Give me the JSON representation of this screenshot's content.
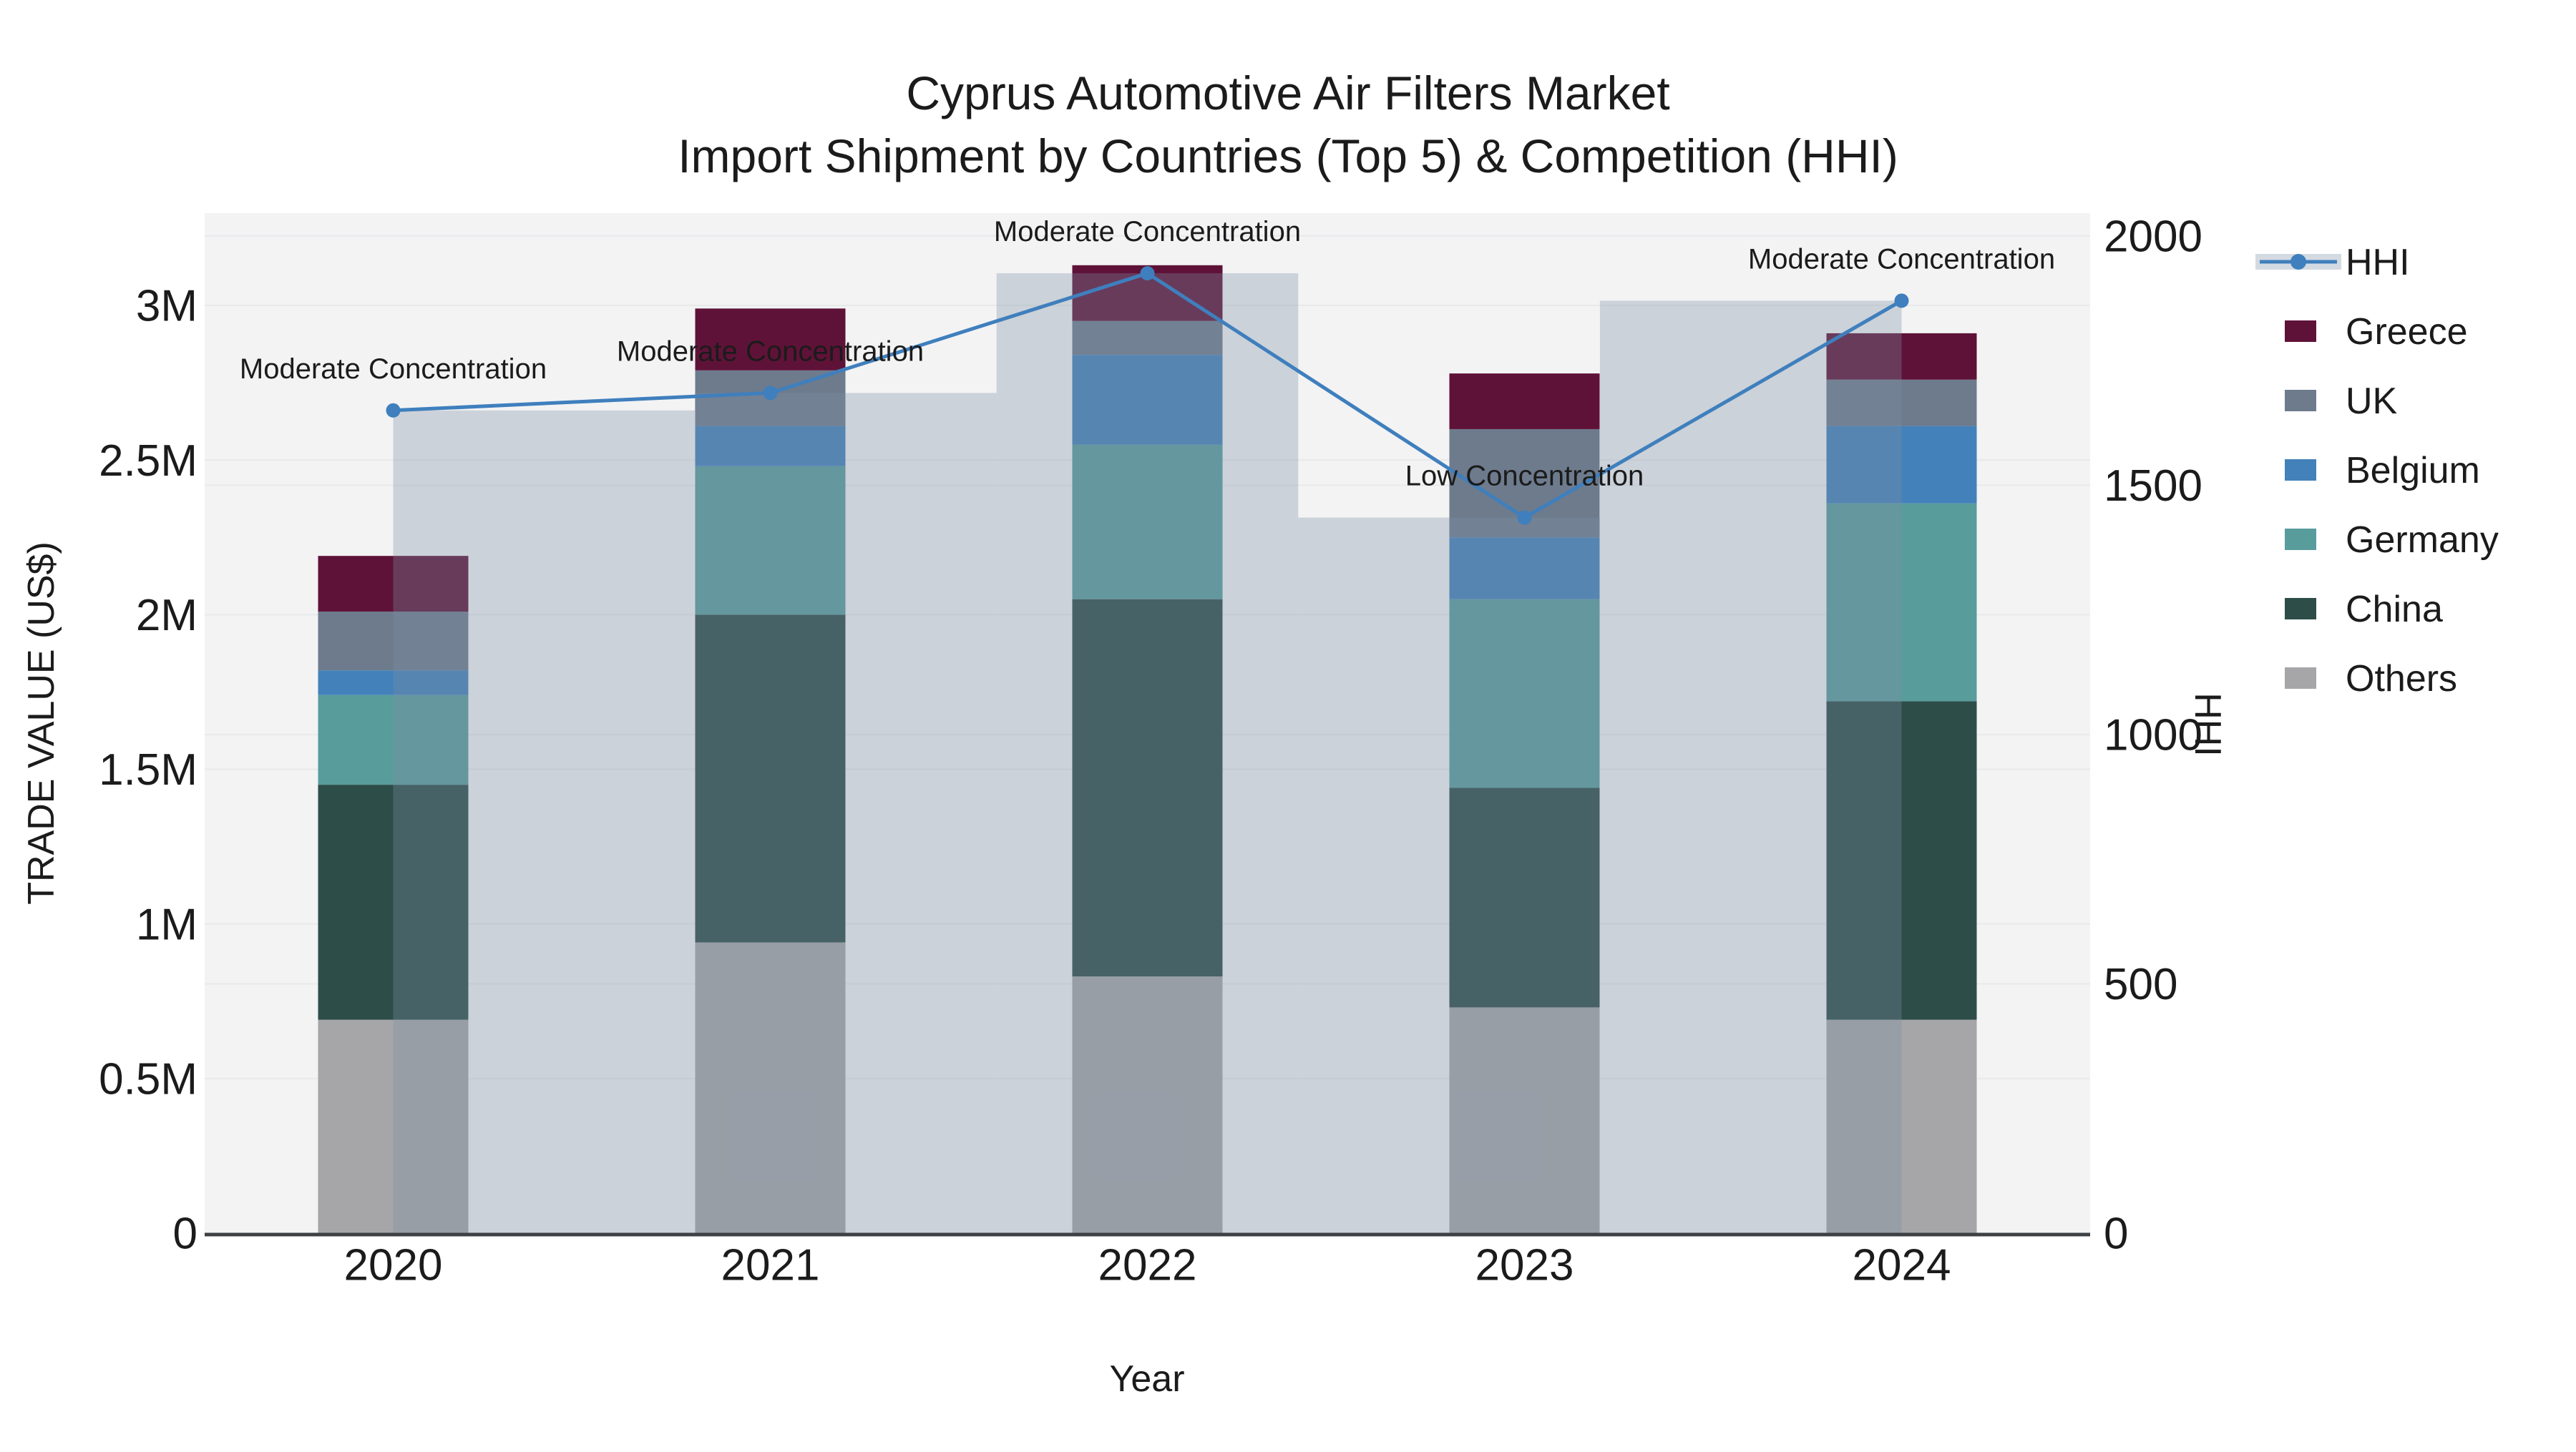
{
  "title": {
    "line1": "Cyprus Automotive Air Filters Market",
    "line2": "Import Shipment by Countries (Top 5) & Competition (HHI)"
  },
  "colors": {
    "plot_bg": "#f3f3f4",
    "grid": "#e8e9eb",
    "axis_line": "#3d4144",
    "text": "#1b1b1b",
    "hhi_line": "#3f7fbd",
    "hhi_overlay": "#7d8ea5",
    "hhi_overlay_alpha": 0.33,
    "greece": "#5f1238",
    "uk": "#6d7b8d",
    "belgium": "#4381ba",
    "germany": "#599c9c",
    "china": "#2d4d49",
    "others": "#a6a6a8"
  },
  "axes": {
    "x": {
      "title": "Year",
      "ticks": [
        "2020",
        "2021",
        "2022",
        "2023",
        "2024"
      ]
    },
    "y_left": {
      "title": "TRADE VALUE (US$)",
      "tick_labels": [
        "0",
        "0.5M",
        "1M",
        "1.5M",
        "2M",
        "2.5M",
        "3M"
      ],
      "tick_values": [
        0,
        0.5,
        1,
        1.5,
        2,
        2.5,
        3
      ]
    },
    "y_right": {
      "title": "HHI",
      "tick_labels": [
        "0",
        "500",
        "1000",
        "1500",
        "2000"
      ],
      "tick_values": [
        0,
        500,
        1000,
        1500,
        2000
      ]
    }
  },
  "legend": {
    "items": [
      {
        "label": "HHI",
        "type": "line",
        "color": "#3f7fbd"
      },
      {
        "label": "Greece",
        "type": "swatch",
        "color": "#5f1238"
      },
      {
        "label": "UK",
        "type": "swatch",
        "color": "#6d7b8d"
      },
      {
        "label": "Belgium",
        "type": "swatch",
        "color": "#4381ba"
      },
      {
        "label": "Germany",
        "type": "swatch",
        "color": "#599c9c"
      },
      {
        "label": "China",
        "type": "swatch",
        "color": "#2d4d49"
      },
      {
        "label": "Others",
        "type": "swatch",
        "color": "#a6a6a8"
      }
    ]
  },
  "chart_data": {
    "type": "combo: stacked-bar (left axis) + line with HHI background columns (right axis)",
    "categories": [
      "2020",
      "2021",
      "2022",
      "2023",
      "2024"
    ],
    "unit_left": "US$ millions (TRADE VALUE)",
    "ylim_left_musd": [
      0,
      3.3
    ],
    "series": [
      {
        "name": "Others",
        "color": "#a6a6a8",
        "values_musd": [
          0.69,
          0.94,
          0.83,
          0.73,
          0.69
        ]
      },
      {
        "name": "China",
        "color": "#2d4d49",
        "values_musd": [
          0.76,
          1.06,
          1.22,
          0.71,
          1.03
        ]
      },
      {
        "name": "Germany",
        "color": "#599c9c",
        "values_musd": [
          0.29,
          0.48,
          0.5,
          0.61,
          0.64
        ]
      },
      {
        "name": "Belgium",
        "color": "#4381ba",
        "values_musd": [
          0.08,
          0.13,
          0.29,
          0.2,
          0.25
        ]
      },
      {
        "name": "UK",
        "color": "#6d7b8d",
        "values_musd": [
          0.19,
          0.18,
          0.11,
          0.35,
          0.15
        ]
      },
      {
        "name": "Greece",
        "color": "#5f1238",
        "values_musd": [
          0.18,
          0.2,
          0.18,
          0.18,
          0.15
        ]
      }
    ],
    "stack_totals_musd": [
      2.19,
      2.99,
      3.13,
      2.78,
      2.91
    ],
    "hhi_line": {
      "name": "HHI",
      "axis": "right",
      "ylim": [
        0,
        2000
      ],
      "values": [
        1650,
        1685,
        1925,
        1435,
        1870
      ]
    },
    "annotations": [
      {
        "year": "2020",
        "text": "Moderate Concentration"
      },
      {
        "year": "2021",
        "text": "Moderate Concentration"
      },
      {
        "year": "2022",
        "text": "Moderate Concentration"
      },
      {
        "year": "2023",
        "text": "Low Concentration"
      },
      {
        "year": "2024",
        "text": "Moderate Concentration"
      }
    ],
    "grid": true,
    "legend_position": "right"
  }
}
